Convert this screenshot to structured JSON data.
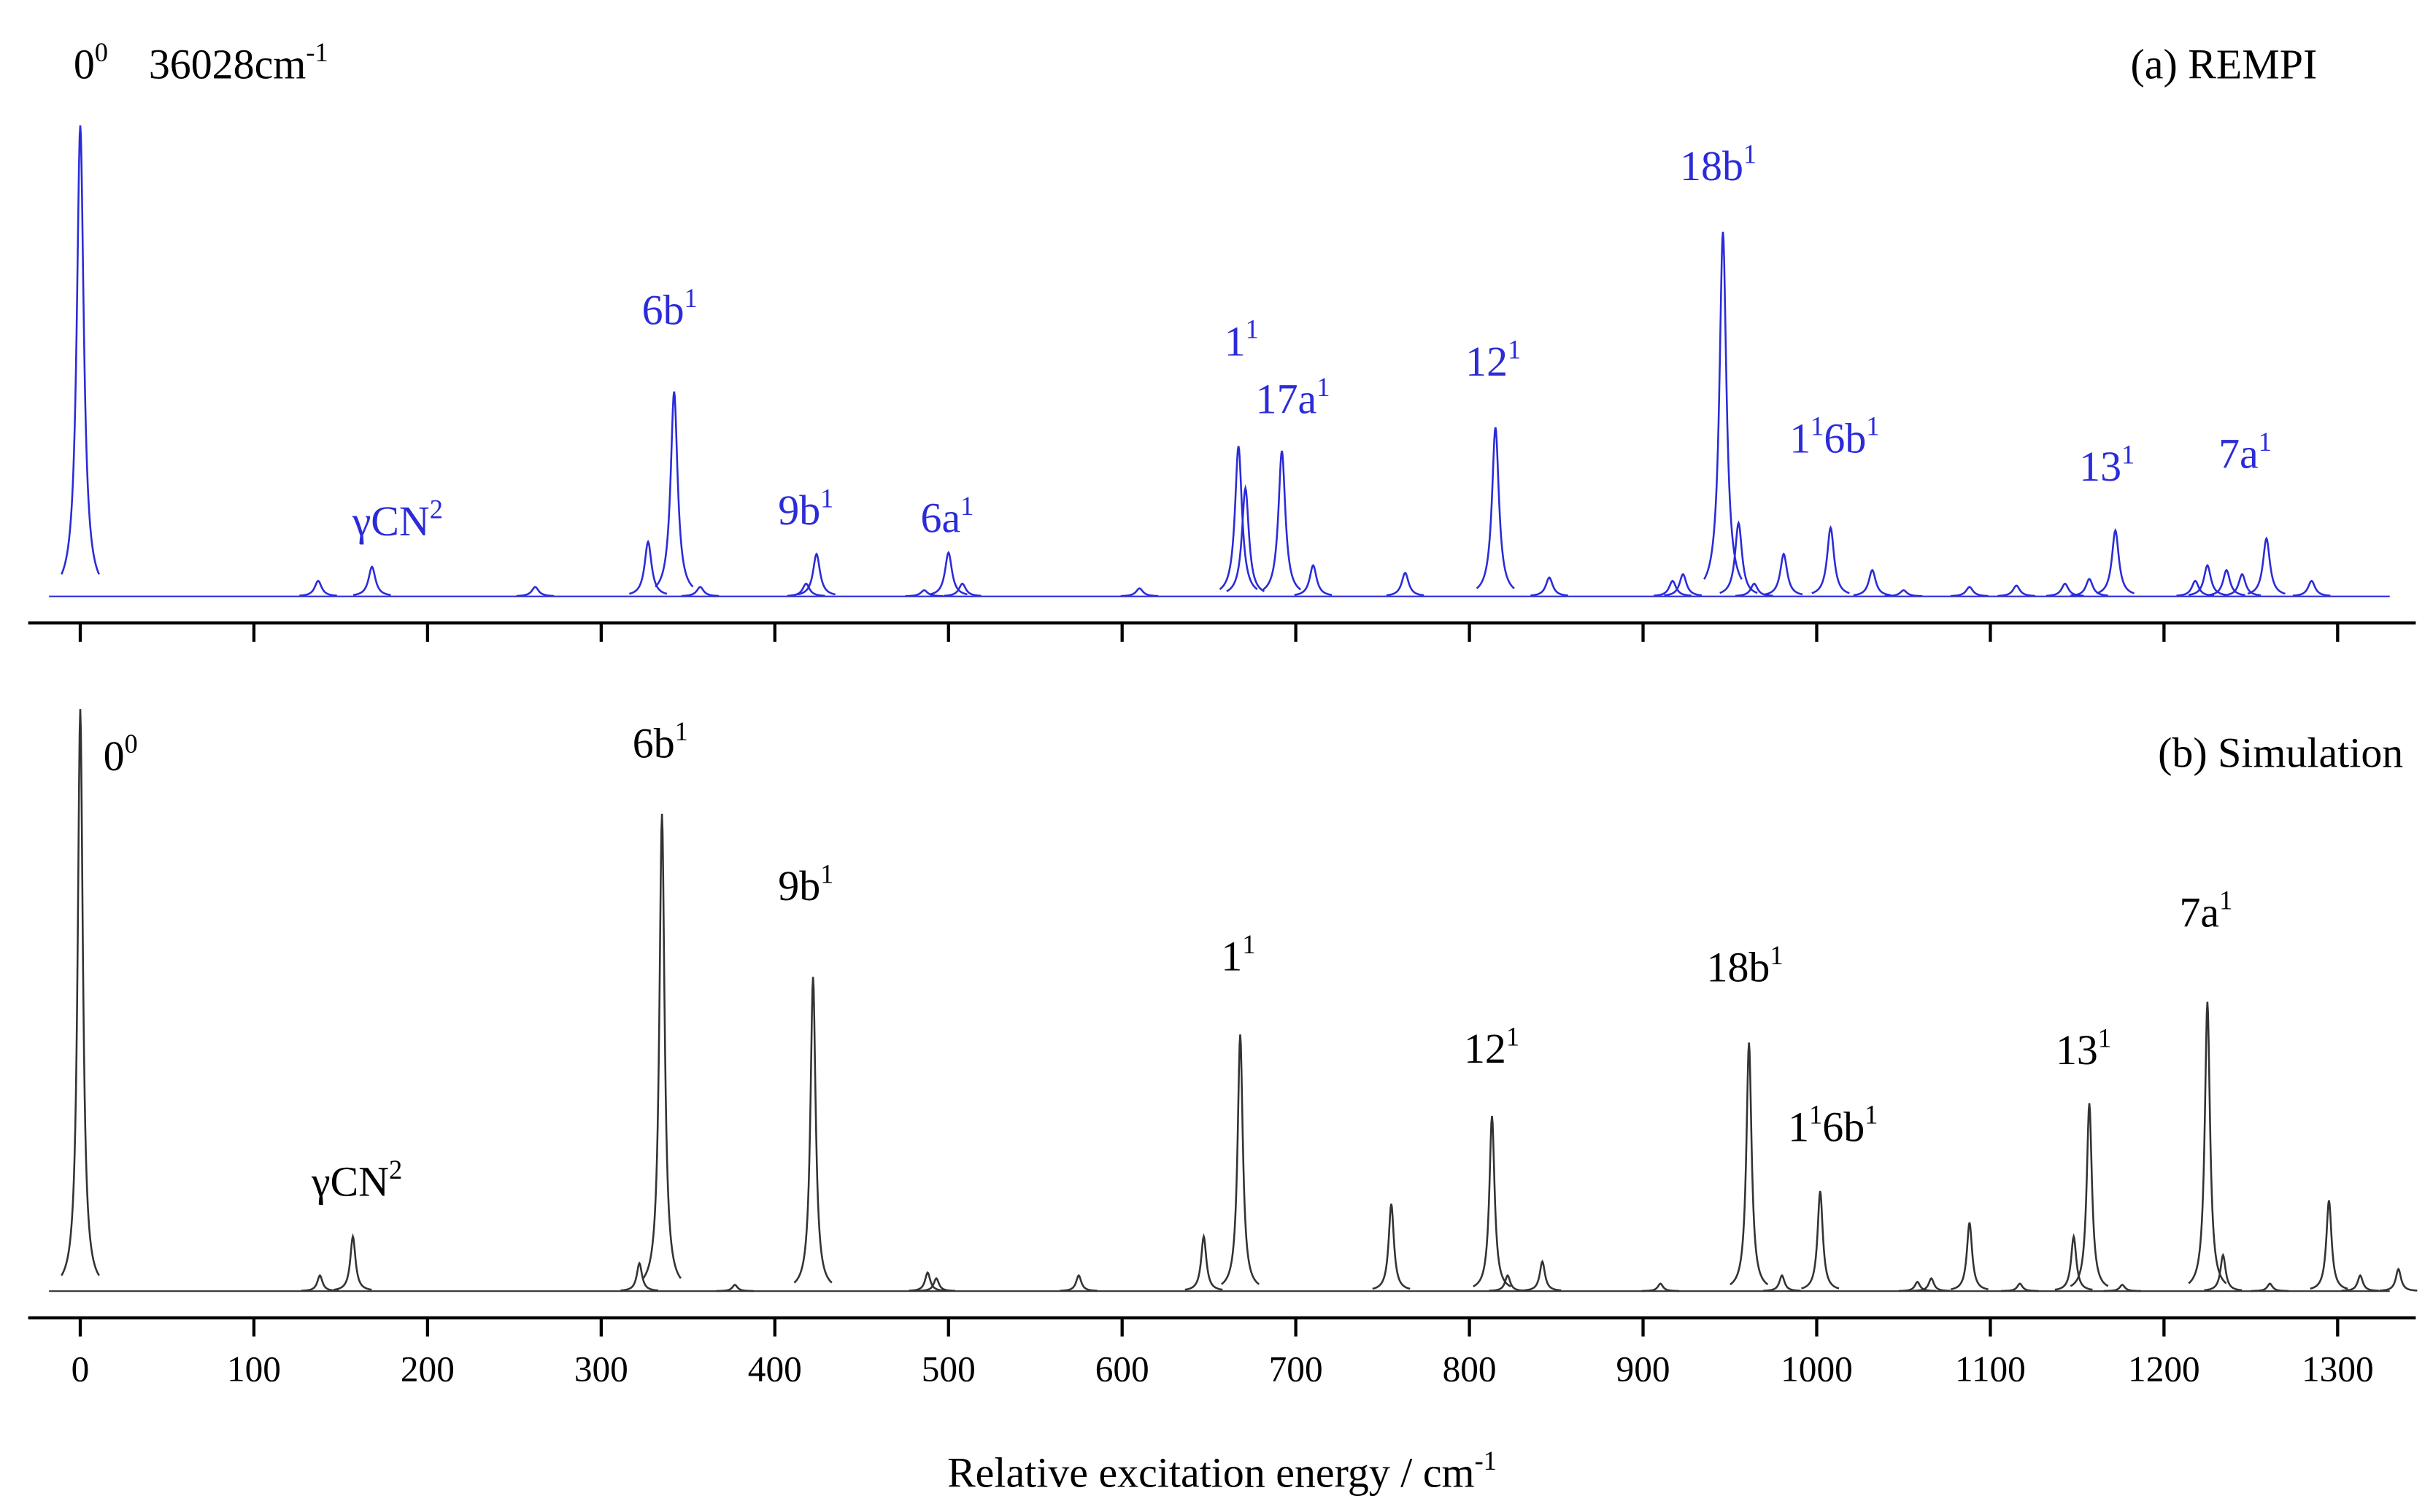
{
  "chart_data": [
    {
      "type": "spectrum",
      "title": "(a) REMPI",
      "color": "#2b2bd9",
      "xlim": [
        -30,
        1345
      ],
      "ylim": [
        0,
        1
      ],
      "xticks": [
        0,
        100,
        200,
        300,
        400,
        500,
        600,
        700,
        800,
        900,
        1000,
        1100,
        1200,
        1300
      ],
      "x": [
        0,
        137,
        168,
        262,
        327,
        342,
        357,
        418,
        424,
        486,
        500,
        508,
        610,
        667,
        671,
        692,
        710,
        763,
        815,
        846,
        917,
        923,
        946,
        955,
        964,
        981,
        1008,
        1032,
        1050,
        1088,
        1115,
        1143,
        1157,
        1172,
        1218,
        1225,
        1236,
        1245,
        1259,
        1285
      ],
      "values": [
        1.0,
        0.033,
        0.063,
        0.02,
        0.116,
        0.435,
        0.02,
        0.027,
        0.09,
        0.013,
        0.093,
        0.027,
        0.017,
        0.319,
        0.23,
        0.309,
        0.066,
        0.05,
        0.359,
        0.04,
        0.033,
        0.047,
        0.774,
        0.156,
        0.027,
        0.09,
        0.146,
        0.056,
        0.013,
        0.02,
        0.023,
        0.027,
        0.037,
        0.14,
        0.033,
        0.066,
        0.056,
        0.047,
        0.123,
        0.033
      ],
      "annotations": [
        {
          "parts": [
            [
              "0",
              "0"
            ]
          ]
        },
        {
          "parts": [
            [
              "36028cm",
              "-1"
            ]
          ]
        },
        {
          "parts": [
            [
              "γCN",
              "2"
            ]
          ]
        },
        {
          "parts": [
            [
              "6b",
              "1"
            ]
          ]
        },
        {
          "parts": [
            [
              "9b",
              "1"
            ]
          ]
        },
        {
          "parts": [
            [
              "6a",
              "1"
            ]
          ]
        },
        {
          "parts": [
            [
              "1",
              "1"
            ]
          ]
        },
        {
          "parts": [
            [
              "17a",
              "1"
            ]
          ]
        },
        {
          "parts": [
            [
              "12",
              "1"
            ]
          ]
        },
        {
          "parts": [
            [
              "18b",
              "1"
            ]
          ]
        },
        {
          "parts": [
            [
              "1",
              "1"
            ],
            [
              "6b",
              "1"
            ]
          ]
        },
        {
          "parts": [
            [
              "13",
              "1"
            ]
          ]
        },
        {
          "parts": [
            [
              "7a",
              "1"
            ]
          ]
        }
      ]
    },
    {
      "type": "spectrum",
      "title": "(b) Simulation",
      "color": "#333333",
      "xlabel": {
        "parts": [
          [
            "Relative excitation energy / cm",
            "-1"
          ]
        ]
      },
      "xlim": [
        -30,
        1345
      ],
      "ylim": [
        0,
        1
      ],
      "xticks": [
        0,
        100,
        200,
        300,
        400,
        500,
        600,
        700,
        800,
        900,
        1000,
        1100,
        1200,
        1300
      ],
      "x": [
        0,
        138,
        157,
        322,
        335,
        377,
        422,
        488,
        493,
        575,
        647,
        668,
        755,
        813,
        822,
        842,
        910,
        961,
        980,
        1002,
        1058,
        1066,
        1088,
        1117,
        1148,
        1157,
        1176,
        1225,
        1234,
        1261,
        1295,
        1313,
        1335
      ],
      "values": [
        1.0,
        0.027,
        0.094,
        0.048,
        0.82,
        0.011,
        0.54,
        0.032,
        0.022,
        0.027,
        0.094,
        0.441,
        0.15,
        0.301,
        0.027,
        0.051,
        0.013,
        0.427,
        0.027,
        0.172,
        0.016,
        0.022,
        0.118,
        0.013,
        0.094,
        0.323,
        0.011,
        0.497,
        0.062,
        0.013,
        0.156,
        0.027,
        0.038
      ],
      "annotations": [
        {
          "parts": [
            [
              "0",
              "0"
            ]
          ]
        },
        {
          "parts": [
            [
              "γCN",
              "2"
            ]
          ]
        },
        {
          "parts": [
            [
              "6b",
              "1"
            ]
          ]
        },
        {
          "parts": [
            [
              "9b",
              "1"
            ]
          ]
        },
        {
          "parts": [
            [
              "1",
              "1"
            ]
          ]
        },
        {
          "parts": [
            [
              "12",
              "1"
            ]
          ]
        },
        {
          "parts": [
            [
              "18b",
              "1"
            ]
          ]
        },
        {
          "parts": [
            [
              "1",
              "1"
            ],
            [
              "6b",
              "1"
            ]
          ]
        },
        {
          "parts": [
            [
              "13",
              "1"
            ]
          ]
        },
        {
          "parts": [
            [
              "7a",
              "1"
            ]
          ]
        }
      ]
    }
  ]
}
